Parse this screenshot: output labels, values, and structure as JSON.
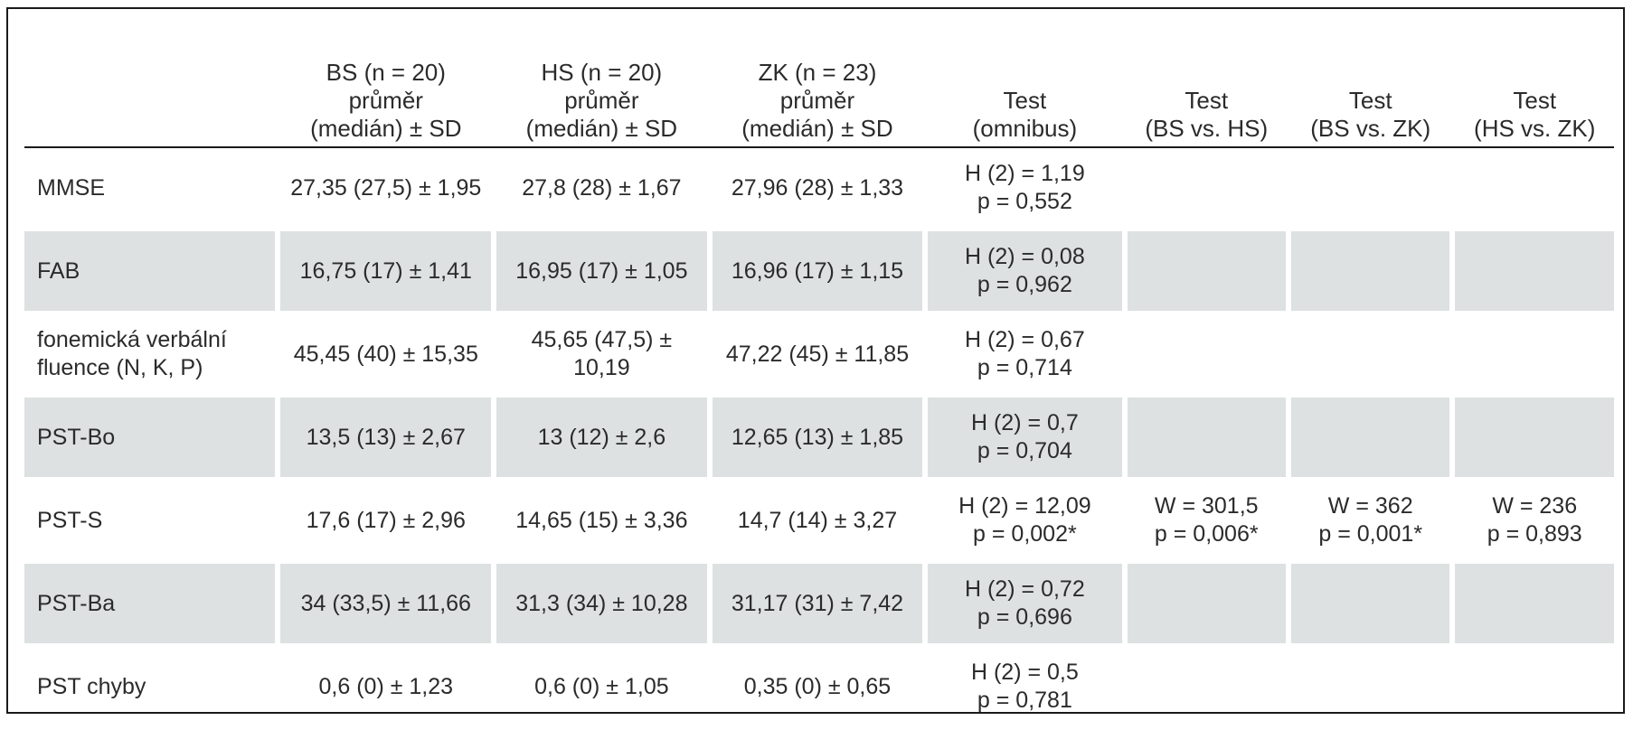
{
  "table": {
    "headers": [
      {
        "lines": [
          ""
        ]
      },
      {
        "lines": [
          "BS (n = 20)",
          "průměr",
          "(medián) ± SD"
        ]
      },
      {
        "lines": [
          "HS (n = 20)",
          "průměr",
          "(medián) ± SD"
        ]
      },
      {
        "lines": [
          "ZK (n = 23)",
          "průměr",
          "(medián) ± SD"
        ]
      },
      {
        "lines": [
          "Test",
          "(omnibus)"
        ]
      },
      {
        "lines": [
          "Test",
          "(BS vs. HS)"
        ]
      },
      {
        "lines": [
          "Test",
          "(BS vs. ZK)"
        ]
      },
      {
        "lines": [
          "Test",
          "(HS vs. ZK)"
        ]
      }
    ],
    "rows": [
      {
        "label": [
          "MMSE"
        ],
        "bs": "27,35 (27,5) ± 1,95",
        "hs": "27,8 (28) ± 1,67",
        "zk": "27,96 (28) ± 1,33",
        "omnibus": [
          "H (2) = 1,19",
          "p = 0,552"
        ],
        "bs_hs": [
          "",
          ""
        ],
        "bs_zk": [
          "",
          ""
        ],
        "hs_zk": [
          "",
          ""
        ],
        "shaded": false
      },
      {
        "label": [
          "FAB"
        ],
        "bs": "16,75 (17) ± 1,41",
        "hs": "16,95 (17) ± 1,05",
        "zk": "16,96 (17) ± 1,15",
        "omnibus": [
          "H (2) = 0,08",
          "p = 0,962"
        ],
        "bs_hs": [
          "",
          ""
        ],
        "bs_zk": [
          "",
          ""
        ],
        "hs_zk": [
          "",
          ""
        ],
        "shaded": true
      },
      {
        "label": [
          "fonemická verbální",
          "fluence (N, K, P)"
        ],
        "bs": "45,45 (40) ± 15,35",
        "hs": "45,65 (47,5) ± 10,19",
        "zk": "47,22 (45) ± 11,85",
        "omnibus": [
          "H (2) = 0,67",
          "p = 0,714"
        ],
        "bs_hs": [
          "",
          ""
        ],
        "bs_zk": [
          "",
          ""
        ],
        "hs_zk": [
          "",
          ""
        ],
        "shaded": false
      },
      {
        "label": [
          "PST-Bo"
        ],
        "bs": "13,5 (13) ± 2,67",
        "hs": "13 (12) ± 2,6",
        "zk": "12,65 (13) ± 1,85",
        "omnibus": [
          "H (2) = 0,7",
          "p = 0,704"
        ],
        "bs_hs": [
          "",
          ""
        ],
        "bs_zk": [
          "",
          ""
        ],
        "hs_zk": [
          "",
          ""
        ],
        "shaded": true
      },
      {
        "label": [
          "PST-S"
        ],
        "bs": "17,6 (17) ± 2,96",
        "hs": "14,65 (15) ± 3,36",
        "zk": "14,7 (14) ± 3,27",
        "omnibus": [
          "H (2) = 12,09",
          "p = 0,002*"
        ],
        "bs_hs": [
          "W = 301,5",
          "p = 0,006*"
        ],
        "bs_zk": [
          "W = 362",
          "p = 0,001*"
        ],
        "hs_zk": [
          "W = 236",
          "p = 0,893"
        ],
        "shaded": false
      },
      {
        "label": [
          "PST-Ba"
        ],
        "bs": "34 (33,5) ± 11,66",
        "hs": "31,3 (34) ± 10,28",
        "zk": "31,17 (31) ± 7,42",
        "omnibus": [
          "H (2) = 0,72",
          "p = 0,696"
        ],
        "bs_hs": [
          "",
          ""
        ],
        "bs_zk": [
          "",
          ""
        ],
        "hs_zk": [
          "",
          ""
        ],
        "shaded": true
      },
      {
        "label": [
          "PST chyby"
        ],
        "bs": "0,6 (0) ± 1,23",
        "hs": "0,6 (0) ± 1,05",
        "zk": "0,35 (0) ± 0,65",
        "omnibus": [
          "H (2) = 0,5",
          "p = 0,781"
        ],
        "bs_hs": [
          "",
          ""
        ],
        "bs_zk": [
          "",
          ""
        ],
        "hs_zk": [
          "",
          ""
        ],
        "shaded": false
      }
    ]
  }
}
